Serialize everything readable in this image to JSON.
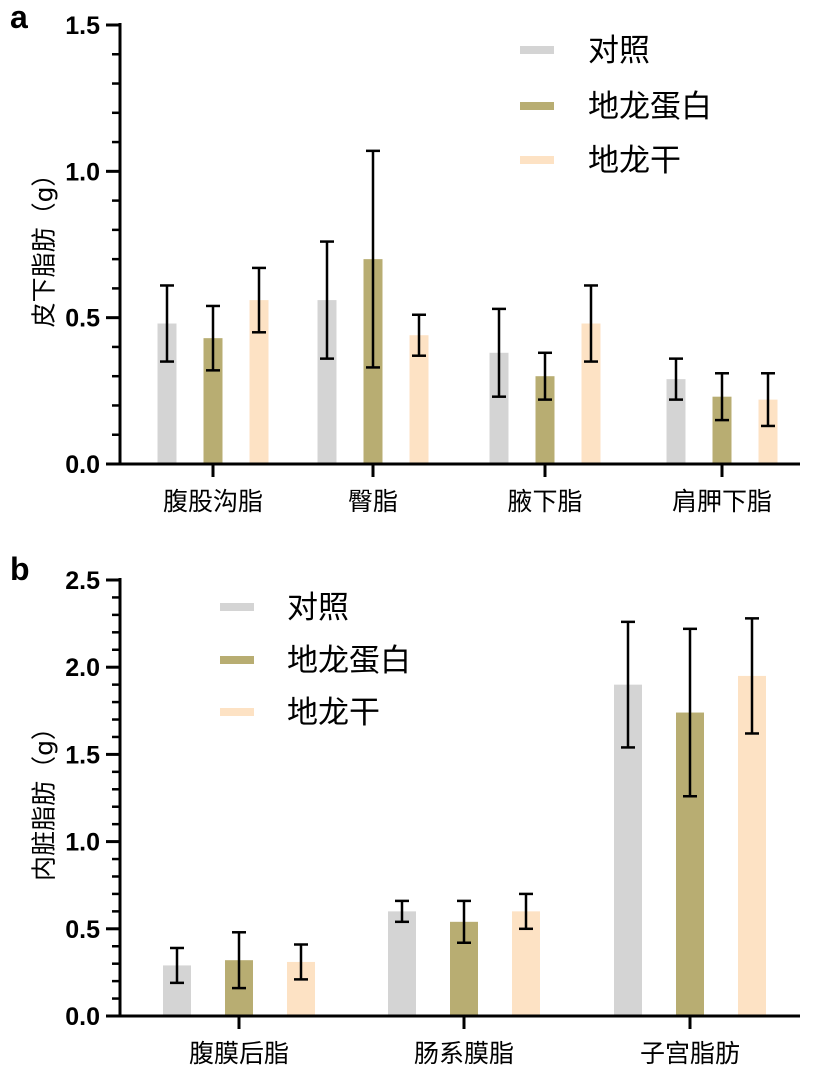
{
  "panels": {
    "a": {
      "letter": "a"
    },
    "b": {
      "letter": "b"
    }
  },
  "colors": {
    "对照": "#d4d4d4",
    "地龙蛋白": "#b8ad72",
    "地龙干": "#fde2c4"
  },
  "chart_data": [
    {
      "type": "bar",
      "panel": "a",
      "title": "",
      "xlabel": "",
      "ylabel": "皮下脂肪（g）",
      "ylim": [
        0,
        1.5
      ],
      "yticks": [
        "0.0",
        "0.5",
        "1.0",
        "1.5"
      ],
      "legend": [
        "对照",
        "地龙蛋白",
        "地龙干"
      ],
      "legend_position": "top-right",
      "categories": [
        "腹股沟脂",
        "臀脂",
        "腋下脂",
        "肩胛下脂"
      ],
      "series": [
        {
          "name": "对照",
          "values": [
            0.48,
            0.56,
            0.38,
            0.29
          ],
          "errors": [
            0.13,
            0.2,
            0.15,
            0.07
          ]
        },
        {
          "name": "地龙蛋白",
          "values": [
            0.43,
            0.7,
            0.3,
            0.23
          ],
          "errors": [
            0.11,
            0.37,
            0.08,
            0.08
          ]
        },
        {
          "name": "地龙干",
          "values": [
            0.56,
            0.44,
            0.48,
            0.22
          ],
          "errors": [
            0.11,
            0.07,
            0.13,
            0.09
          ]
        }
      ]
    },
    {
      "type": "bar",
      "panel": "b",
      "title": "",
      "xlabel": "",
      "ylabel": "内脏脂肪（g）",
      "ylim": [
        0,
        2.5
      ],
      "yticks": [
        "0.0",
        "0.5",
        "1.0",
        "1.5",
        "2.0",
        "2.5"
      ],
      "legend": [
        "对照",
        "地龙蛋白",
        "地龙干"
      ],
      "legend_position": "top-left",
      "categories": [
        "腹膜后脂",
        "肠系膜脂",
        "子宫脂肪"
      ],
      "series": [
        {
          "name": "对照",
          "values": [
            0.29,
            0.6,
            1.9
          ],
          "errors": [
            0.1,
            0.06,
            0.36
          ]
        },
        {
          "name": "地龙蛋白",
          "values": [
            0.32,
            0.54,
            1.74
          ],
          "errors": [
            0.16,
            0.12,
            0.48
          ]
        },
        {
          "name": "地龙干",
          "values": [
            0.31,
            0.6,
            1.95
          ],
          "errors": [
            0.1,
            0.1,
            0.33
          ]
        }
      ]
    }
  ]
}
